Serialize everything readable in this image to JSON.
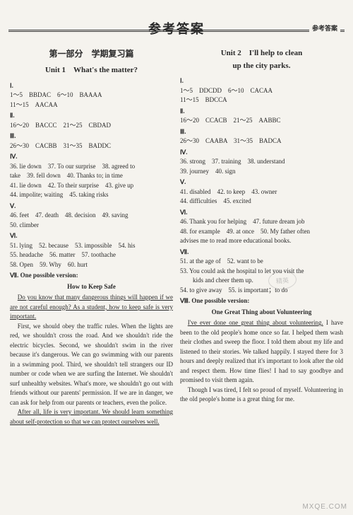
{
  "header_label": "参考答案",
  "main_title": "参考答案",
  "left": {
    "part_title": "第一部分　学期复习篇",
    "unit_title": "Unit 1　What's the matter?",
    "s1": "Ⅰ.",
    "l1": "1～5　BBDAC　6～10　BAAAA",
    "l2": "11～15　AACAA",
    "s2": "Ⅱ.",
    "l3": "16～20　BACCC　21～25　CBDAD",
    "s3": "Ⅲ.",
    "l4": "26～30　CACBB　31～35　BADDC",
    "s4": "Ⅳ.",
    "l5": "36. lie down　37. To our surprise　38. agreed to",
    "l6": "take　39. fell down　40. Thanks to; in time",
    "l7": "41. lie down　42. To their surprise　43. give up",
    "l8": "44. impolite; waiting　45. taking risks",
    "s5": "Ⅴ.",
    "l9": "46. feet　47. death　48. decision　49. saving",
    "l10": "50. climber",
    "s6": "Ⅵ.",
    "l11": "51. lying　52. because　53. impossible　54. his",
    "l12": "55. headache　56. matter　57. toothache",
    "l13": "58. Open　59. Why　60. hurt",
    "s7": "Ⅶ. One possible version:",
    "essay_title": "How to Keep Safe",
    "p1a": "Do you know that many dangerous things will happen if we are not careful enough? As a student, how to keep safe is very important.",
    "p2": "First, we should obey the traffic rules. When the lights are red, we shouldn't cross the road. And we shouldn't ride the electric bicycles. Second, we shouldn't swim in the river because it's dangerous. We can go swimming with our parents in a swimming pool. Third, we shouldn't tell strangers our ID number or code when we are surfing the Internet. We shouldn't surf unhealthy websites. What's more, we shouldn't go out with friends without our parents' permission. If we are in danger, we can ask for help from our parents or teachers, even the police.",
    "p3a": "After all, life is very important. We should learn something about self-protection so that we can protect ourselves well."
  },
  "right": {
    "unit_title_a": "Unit 2　I'll help to clean",
    "unit_title_b": "up the city parks.",
    "s1": "Ⅰ.",
    "l1": "1～5　DDCDD　6～10　CACAA",
    "l2": "11～15　BDCCA",
    "s2": "Ⅱ.",
    "l3": "16～20　CCACB　21～25　AABBC",
    "s3": "Ⅲ.",
    "l4": "26～30　CAABA　31～35　BADCA",
    "s4": "Ⅳ.",
    "l5": "36. strong　37. training　38. understand",
    "l6": "39. journey　40. sign",
    "s5": "Ⅴ.",
    "l7": "41. disabled　42. to keep　43. owner",
    "l8": "44. difficulties　45. excited",
    "s6": "Ⅵ.",
    "l9": "46. Thank you for helping　47. future dream job",
    "l10": "48. for example　49. at once　50. My father often",
    "l11": "advises me to read more educational books.",
    "s7": "Ⅶ.",
    "l12": "51. at the age of　52. want to be",
    "l13": "53. You could ask the hospital to let you visit the",
    "l14": "　　kids and cheer them up.",
    "l15": "54. to give away　55. is important；to do",
    "s8": "Ⅷ. One possible version:",
    "essay_title": "One Great Thing about Volunteering",
    "p1a": "I've ever done one great thing about volunteering.",
    "p1b": " I have been to the old people's home once so far. I helped them wash their clothes and sweep the floor. I told them about my life and listened to their stories. We talked happily. I stayed there for 3 hours and deeply realized that it's important to look after the old and respect them. How time flies! I had to say goodbye and promised to visit them again.",
    "p2": "Though I was tired, I felt so proud of myself. Volunteering in the old people's home is a great thing for me."
  },
  "watermark": "MXQE.COM",
  "stamp": "精英"
}
